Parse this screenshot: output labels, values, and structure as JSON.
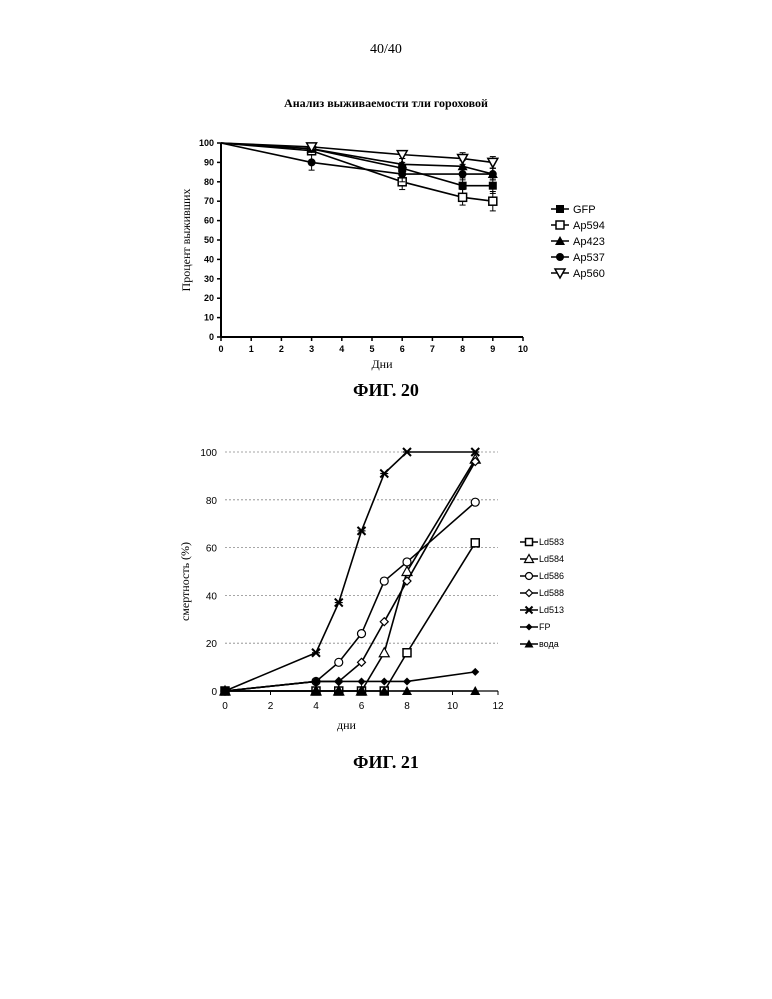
{
  "page_number": "40/40",
  "chart_data": [
    {
      "type": "line",
      "title": "Анализ выживаемости тли гороховой",
      "xlabel": "Дни",
      "ylabel": "Процент выживших",
      "xlim": [
        0,
        10
      ],
      "ylim": [
        0,
        100
      ],
      "x_ticks": [
        "0",
        "1",
        "2",
        "3",
        "4",
        "5",
        "6",
        "7",
        "8",
        "9",
        "10"
      ],
      "y_ticks": [
        "0",
        "10",
        "20",
        "30",
        "40",
        "50",
        "60",
        "70",
        "80",
        "90",
        "100"
      ],
      "legend_placement": "right",
      "error_bars": true,
      "caption": "ФИГ. 20",
      "series": [
        {
          "name": "GFP",
          "marker": "square-filled",
          "x": [
            0,
            3,
            6,
            8,
            9
          ],
          "y": [
            100,
            97,
            87,
            78,
            78
          ],
          "err": [
            0,
            1,
            3,
            4,
            4
          ]
        },
        {
          "name": "Ap594",
          "marker": "square-open",
          "x": [
            0,
            3,
            6,
            8,
            9
          ],
          "y": [
            100,
            96,
            80,
            72,
            70
          ],
          "err": [
            0,
            2,
            4,
            4,
            5
          ]
        },
        {
          "name": "Ap423",
          "marker": "triangle-filled",
          "x": [
            0,
            3,
            6,
            8,
            9
          ],
          "y": [
            100,
            97,
            89,
            88,
            84
          ],
          "err": [
            0,
            1,
            3,
            3,
            3
          ]
        },
        {
          "name": "Ap537",
          "marker": "circle-filled",
          "x": [
            0,
            3,
            6,
            8,
            9
          ],
          "y": [
            100,
            90,
            84,
            84,
            84
          ],
          "err": [
            0,
            4,
            4,
            3,
            3
          ]
        },
        {
          "name": "Ap560",
          "marker": "triangle-down-open",
          "x": [
            0,
            3,
            6,
            8,
            9
          ],
          "y": [
            100,
            98,
            94,
            92,
            90
          ],
          "err": [
            0,
            1,
            2,
            3,
            3
          ]
        }
      ]
    },
    {
      "type": "line",
      "xlabel": "дни",
      "ylabel": "смертность (%)",
      "xlim": [
        0,
        12
      ],
      "ylim": [
        0,
        100
      ],
      "x_ticks": [
        "0",
        "2",
        "4",
        "6",
        "8",
        "10",
        "12"
      ],
      "y_ticks": [
        "0",
        "20",
        "40",
        "60",
        "80",
        "100"
      ],
      "grid": "horizontal dotted",
      "legend_placement": "right",
      "caption": "ФИГ. 21",
      "series": [
        {
          "name": "Ld583",
          "marker": "square-open",
          "x": [
            0,
            4,
            5,
            6,
            7,
            8,
            11
          ],
          "y": [
            0,
            0,
            0,
            0,
            0,
            16,
            62
          ]
        },
        {
          "name": "Ld584",
          "marker": "triangle-open",
          "x": [
            0,
            4,
            5,
            6,
            7,
            8,
            11
          ],
          "y": [
            0,
            0,
            0,
            0,
            16,
            50,
            97
          ]
        },
        {
          "name": "Ld586",
          "marker": "circle-open",
          "x": [
            0,
            4,
            5,
            6,
            7,
            8,
            11
          ],
          "y": [
            0,
            4,
            12,
            24,
            46,
            54,
            79
          ]
        },
        {
          "name": "Ld588",
          "marker": "diamond-open",
          "x": [
            0,
            4,
            5,
            6,
            7,
            8,
            11
          ],
          "y": [
            0,
            4,
            4,
            12,
            29,
            46,
            96
          ]
        },
        {
          "name": "Ld513",
          "marker": "asterisk",
          "x": [
            0,
            4,
            5,
            6,
            7,
            8,
            11
          ],
          "y": [
            0,
            16,
            37,
            67,
            91,
            100,
            100
          ]
        },
        {
          "name": "FP",
          "marker": "diamond-filled",
          "x": [
            0,
            4,
            5,
            6,
            7,
            8,
            11
          ],
          "y": [
            0,
            4,
            4,
            4,
            4,
            4,
            8
          ]
        },
        {
          "name": "вода",
          "marker": "triangle-filled",
          "x": [
            0,
            4,
            5,
            6,
            7,
            8,
            11
          ],
          "y": [
            0,
            0,
            0,
            0,
            0,
            0,
            0
          ]
        }
      ]
    }
  ]
}
